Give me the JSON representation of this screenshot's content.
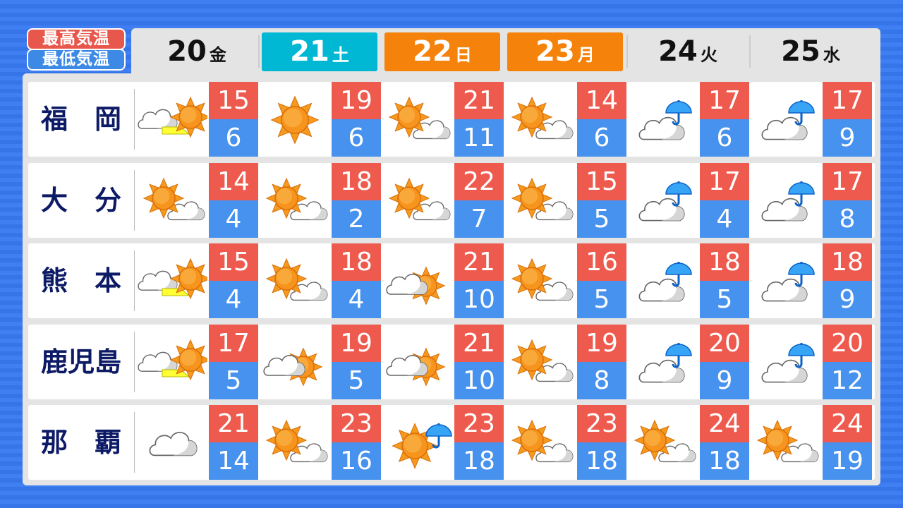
{
  "legend": {
    "high_label": "最高気温",
    "low_label": "最低気温"
  },
  "colors": {
    "high": "#ee5a4e",
    "low": "#4692ee",
    "saturday": "#00b8d4",
    "holiday": "#f5820a",
    "city": "#0d1a66"
  },
  "days": [
    {
      "num": "20",
      "wd": "金",
      "style": "plain"
    },
    {
      "num": "21",
      "wd": "土",
      "style": "saturday"
    },
    {
      "num": "22",
      "wd": "日",
      "style": "holiday"
    },
    {
      "num": "23",
      "wd": "月",
      "style": "holiday"
    },
    {
      "num": "24",
      "wd": "火",
      "style": "plain"
    },
    {
      "num": "25",
      "wd": "水",
      "style": "plain"
    }
  ],
  "cities": [
    {
      "name": "福　岡",
      "forecast": [
        {
          "icon": "cloud-then-sun-icon",
          "hi": "15",
          "lo": "6"
        },
        {
          "icon": "sun-icon",
          "hi": "19",
          "lo": "6"
        },
        {
          "icon": "sun-cloud-icon",
          "hi": "21",
          "lo": "11"
        },
        {
          "icon": "sun-cloud-icon",
          "hi": "14",
          "lo": "6"
        },
        {
          "icon": "cloud-rain-icon",
          "hi": "17",
          "lo": "6"
        },
        {
          "icon": "cloud-rain-icon",
          "hi": "17",
          "lo": "9"
        }
      ]
    },
    {
      "name": "大　分",
      "forecast": [
        {
          "icon": "sun-cloud-icon",
          "hi": "14",
          "lo": "4"
        },
        {
          "icon": "sun-cloud-icon",
          "hi": "18",
          "lo": "2"
        },
        {
          "icon": "sun-cloud-icon",
          "hi": "22",
          "lo": "7"
        },
        {
          "icon": "sun-cloud-icon",
          "hi": "15",
          "lo": "5"
        },
        {
          "icon": "cloud-rain-icon",
          "hi": "17",
          "lo": "4"
        },
        {
          "icon": "cloud-rain-icon",
          "hi": "17",
          "lo": "8"
        }
      ]
    },
    {
      "name": "熊　本",
      "forecast": [
        {
          "icon": "cloud-then-sun-icon",
          "hi": "15",
          "lo": "4"
        },
        {
          "icon": "sun-cloud-icon",
          "hi": "18",
          "lo": "4"
        },
        {
          "icon": "cloud-sun-icon",
          "hi": "21",
          "lo": "10"
        },
        {
          "icon": "sun-cloud-icon",
          "hi": "16",
          "lo": "5"
        },
        {
          "icon": "cloud-rain-icon",
          "hi": "18",
          "lo": "5"
        },
        {
          "icon": "cloud-rain-icon",
          "hi": "18",
          "lo": "9"
        }
      ]
    },
    {
      "name": "鹿児島",
      "forecast": [
        {
          "icon": "cloud-then-sun-icon",
          "hi": "17",
          "lo": "5"
        },
        {
          "icon": "cloud-sun-icon",
          "hi": "19",
          "lo": "5"
        },
        {
          "icon": "cloud-sun-icon",
          "hi": "21",
          "lo": "10"
        },
        {
          "icon": "sun-cloud-icon",
          "hi": "19",
          "lo": "8"
        },
        {
          "icon": "cloud-rain-icon",
          "hi": "20",
          "lo": "9"
        },
        {
          "icon": "cloud-rain-icon",
          "hi": "20",
          "lo": "12"
        }
      ]
    },
    {
      "name": "那　覇",
      "forecast": [
        {
          "icon": "cloud-icon",
          "hi": "21",
          "lo": "14"
        },
        {
          "icon": "sun-cloud-icon",
          "hi": "23",
          "lo": "16"
        },
        {
          "icon": "sun-rain-icon",
          "hi": "23",
          "lo": "18"
        },
        {
          "icon": "sun-cloud-icon",
          "hi": "23",
          "lo": "18"
        },
        {
          "icon": "sun-cloud-icon",
          "hi": "24",
          "lo": "18"
        },
        {
          "icon": "sun-cloud-icon",
          "hi": "24",
          "lo": "19"
        }
      ]
    }
  ]
}
